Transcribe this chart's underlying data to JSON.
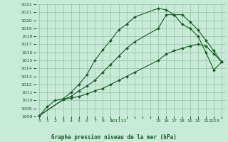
{
  "title": "Graphe pression niveau de la mer (hPa)",
  "bg_color": "#c8ead8",
  "line_color": "#1a5c28",
  "grid_color": "#9fc8b0",
  "xlim": [
    -0.5,
    23.5
  ],
  "ylim": [
    1008,
    1022
  ],
  "xtick_positions": [
    0,
    1,
    2,
    3,
    4,
    5,
    6,
    7,
    8,
    9,
    10,
    11,
    12,
    15,
    16,
    17,
    18,
    19,
    20,
    21,
    22,
    23
  ],
  "xtick_labels": [
    "0",
    "1",
    "2",
    "3",
    "4",
    "5",
    "6",
    "7",
    "8",
    "9",
    "101112",
    "",
    "",
    "15",
    "16",
    "17",
    "18",
    "19",
    "20",
    "21",
    "2223",
    ""
  ],
  "yticks": [
    1008,
    1009,
    1010,
    1011,
    1012,
    1013,
    1014,
    1015,
    1016,
    1017,
    1018,
    1019,
    1020,
    1021,
    1022
  ],
  "series1_x": [
    0,
    1,
    2,
    3,
    4,
    5,
    6,
    7,
    8,
    9,
    10,
    11,
    12,
    15,
    16,
    17,
    18,
    19,
    20,
    21,
    22,
    23
  ],
  "series1_y": [
    1008.1,
    1009.2,
    1010.0,
    1010.2,
    1011.0,
    1012.0,
    1013.2,
    1015.0,
    1016.3,
    1017.5,
    1018.8,
    1019.5,
    1020.4,
    1021.5,
    1021.3,
    1020.7,
    1020.7,
    1019.8,
    1018.8,
    1017.5,
    1016.2,
    1014.8
  ],
  "series2_x": [
    0,
    3,
    4,
    5,
    6,
    7,
    8,
    9,
    10,
    11,
    12,
    15,
    16,
    17,
    18,
    19,
    20,
    21,
    22,
    23
  ],
  "series2_y": [
    1008.1,
    1010.1,
    1010.5,
    1011.2,
    1011.8,
    1012.5,
    1013.5,
    1014.5,
    1015.5,
    1016.5,
    1017.3,
    1019.0,
    1020.7,
    1020.7,
    1019.5,
    1019.0,
    1018.0,
    1016.0,
    1013.8,
    1014.8
  ],
  "series3_x": [
    0,
    3,
    4,
    5,
    6,
    7,
    8,
    9,
    10,
    11,
    12,
    15,
    16,
    17,
    18,
    19,
    20,
    21,
    22,
    23
  ],
  "series3_y": [
    1008.1,
    1010.1,
    1010.3,
    1010.5,
    1010.8,
    1011.2,
    1011.5,
    1012.0,
    1012.5,
    1013.0,
    1013.5,
    1015.0,
    1015.8,
    1016.2,
    1016.5,
    1016.8,
    1017.0,
    1016.8,
    1015.8,
    1014.8
  ]
}
